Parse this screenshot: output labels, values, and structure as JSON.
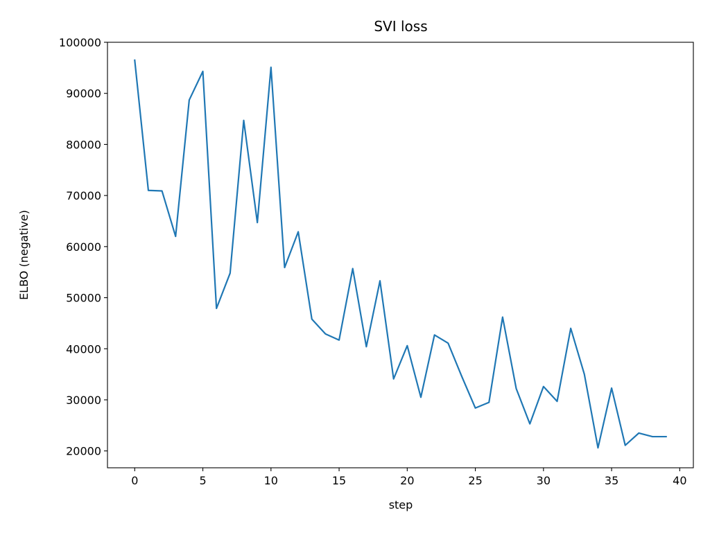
{
  "chart_data": {
    "type": "line",
    "title": "SVI loss",
    "xlabel": "step",
    "ylabel": "ELBO (negative)",
    "xlim": [
      -2,
      41
    ],
    "ylim": [
      16700,
      100000
    ],
    "xticks": [
      0,
      5,
      10,
      15,
      20,
      25,
      30,
      35,
      40
    ],
    "yticks": [
      20000,
      30000,
      40000,
      50000,
      60000,
      70000,
      80000,
      90000,
      100000
    ],
    "grid": false,
    "line_color": "#1f77b4",
    "x": [
      0,
      1,
      2,
      3,
      4,
      5,
      6,
      7,
      8,
      9,
      10,
      11,
      12,
      13,
      14,
      15,
      16,
      17,
      18,
      19,
      20,
      21,
      22,
      23,
      24,
      25,
      26,
      27,
      28,
      29,
      30,
      31,
      32,
      33,
      34,
      35,
      36,
      37,
      38,
      39
    ],
    "y": [
      96500,
      71000,
      70900,
      62000,
      88700,
      94300,
      47900,
      54800,
      84700,
      64700,
      95100,
      55900,
      62900,
      45800,
      42900,
      41700,
      55700,
      40400,
      53300,
      34100,
      40600,
      30500,
      42700,
      41100,
      34600,
      28400,
      29500,
      46200,
      32200,
      25300,
      32600,
      29700,
      44000,
      35000,
      20600,
      32300,
      21100,
      23500,
      22800,
      22800
    ]
  }
}
